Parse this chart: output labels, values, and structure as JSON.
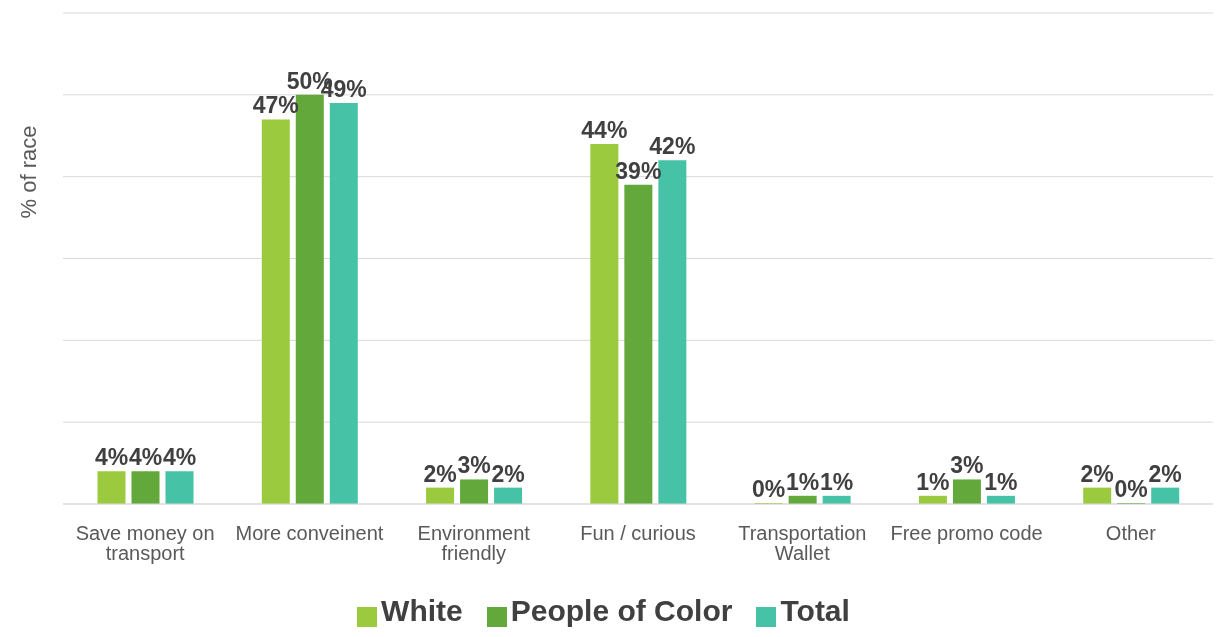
{
  "chart_data": {
    "type": "bar",
    "ylabel": "% of race",
    "categories": [
      "Save money on transport",
      "More conveinent",
      "Environment friendly",
      "Fun / curious",
      "Transportation Wallet",
      "Free promo code",
      "Other"
    ],
    "series": [
      {
        "name": "White",
        "color": "#9bca3e",
        "values": [
          4,
          47,
          2,
          44,
          0,
          1,
          2
        ],
        "value_labels": [
          "4%",
          "47%",
          "2%",
          "44%",
          "0%",
          "1%",
          "2%"
        ]
      },
      {
        "name": "People of Color",
        "color": "#62a83a",
        "values": [
          4,
          50,
          3,
          39,
          1,
          3,
          0
        ],
        "value_labels": [
          "4%",
          "50%",
          "3%",
          "39%",
          "1%",
          "3%",
          "0%"
        ]
      },
      {
        "name": "Total",
        "color": "#46c2a6",
        "values": [
          4,
          49,
          2,
          42,
          1,
          1,
          2
        ],
        "value_labels": [
          "4%",
          "49%",
          "2%",
          "42%",
          "1%",
          "1%",
          "2%"
        ]
      }
    ],
    "ylim": [
      0,
      60
    ],
    "yticks": [
      {
        "value": 0,
        "label": null
      },
      {
        "value": 10,
        "label": null
      },
      {
        "value": 20,
        "label": null
      },
      {
        "value": 30,
        "label": null
      },
      {
        "value": 40,
        "label": null
      },
      {
        "value": 50,
        "label": null
      },
      {
        "value": 60,
        "label": null
      }
    ],
    "grid": "y",
    "legend": "bottom",
    "tick_labels": "x"
  }
}
